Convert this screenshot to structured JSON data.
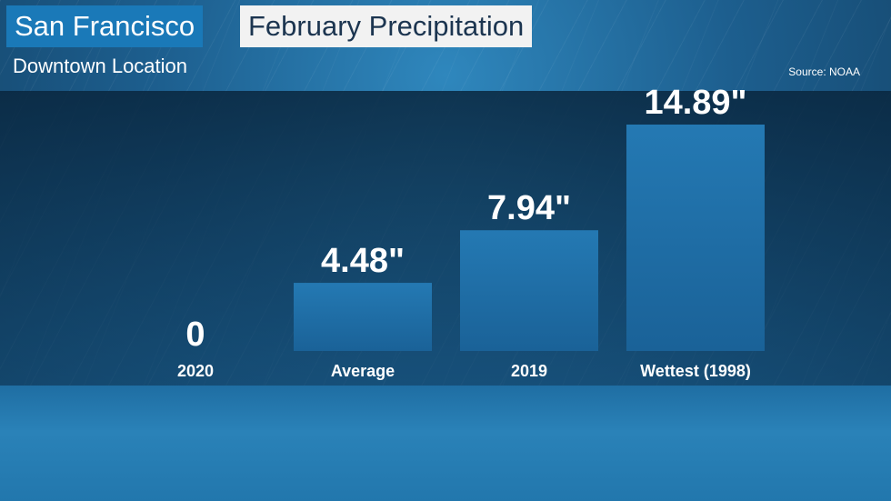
{
  "header": {
    "city": "San Francisco",
    "topic": "February Precipitation",
    "subtitle": "Downtown Location",
    "source": "Source: NOAA"
  },
  "colors": {
    "bar": "#1f6fa7",
    "title_accent": "#1a79b8"
  },
  "chart_data": {
    "type": "bar",
    "categories": [
      "2020",
      "Average",
      "2019",
      "Wettest (1998)"
    ],
    "values": [
      0,
      4.48,
      7.94,
      14.89
    ],
    "value_labels": [
      "0",
      "4.48\"",
      "7.94\"",
      "14.89\""
    ],
    "title": "February Precipitation",
    "xlabel": "",
    "ylabel": "",
    "grid": false
  }
}
